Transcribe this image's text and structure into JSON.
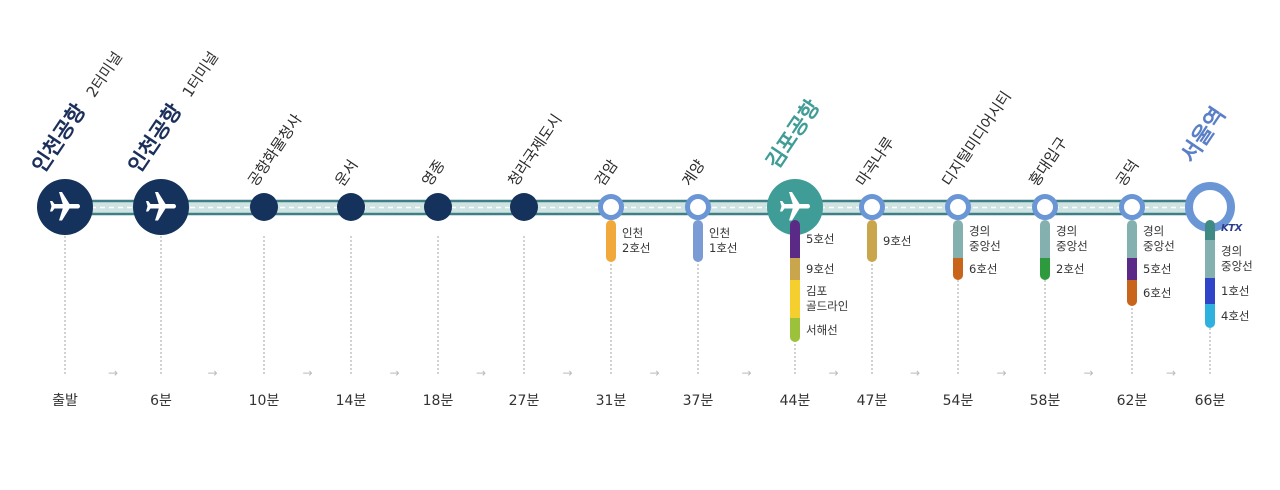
{
  "colors": {
    "navy": "#14325c",
    "teal": "#3f9c96",
    "blue": "#6a96d6",
    "track_edge": "#3f7f86",
    "track_fill": "#cfe3e3"
  },
  "stations": [
    {
      "name": "인천공항",
      "sub": "2터미널",
      "time": "출발",
      "type": "airport",
      "transfers": []
    },
    {
      "name": "인천공항",
      "sub": "1터미널",
      "time": "6분",
      "type": "airport",
      "transfers": []
    },
    {
      "name": "공항화물청사",
      "sub": "",
      "time": "10분",
      "type": "small",
      "transfers": []
    },
    {
      "name": "운서",
      "sub": "",
      "time": "14분",
      "type": "small",
      "transfers": []
    },
    {
      "name": "영종",
      "sub": "",
      "time": "18분",
      "type": "small",
      "transfers": []
    },
    {
      "name": "청라국제도시",
      "sub": "",
      "time": "27분",
      "type": "small",
      "transfers": []
    },
    {
      "name": "검암",
      "sub": "",
      "time": "31분",
      "type": "ring",
      "transfers": [
        {
          "label": "인천\n2호선",
          "color": "#f2a93b"
        }
      ]
    },
    {
      "name": "계양",
      "sub": "",
      "time": "37분",
      "type": "ring",
      "transfers": [
        {
          "label": "인천\n1호선",
          "color": "#7b9bd4"
        }
      ]
    },
    {
      "name": "김포공항",
      "sub": "",
      "time": "44분",
      "type": "gimpo",
      "transfers": [
        {
          "label": "5호선",
          "color": "#5b2a86"
        },
        {
          "label": "9호선",
          "color": "#c9a54b"
        },
        {
          "label": "김포\n골드라인",
          "color": "#f4cf2e"
        },
        {
          "label": "서해선",
          "color": "#9cc23b"
        }
      ]
    },
    {
      "name": "마곡나루",
      "sub": "",
      "time": "47분",
      "type": "ring",
      "transfers": [
        {
          "label": "9호선",
          "color": "#c9a54b"
        }
      ]
    },
    {
      "name": "디지털미디어시티",
      "sub": "",
      "time": "54분",
      "type": "ring",
      "transfers": [
        {
          "label": "경의\n중앙선",
          "color": "#85b0b0"
        },
        {
          "label": "6호선",
          "color": "#c8651b"
        }
      ]
    },
    {
      "name": "홍대입구",
      "sub": "",
      "time": "58분",
      "type": "ring",
      "transfers": [
        {
          "label": "경의\n중앙선",
          "color": "#85b0b0"
        },
        {
          "label": "2호선",
          "color": "#2e9a3e"
        }
      ]
    },
    {
      "name": "공덕",
      "sub": "",
      "time": "62분",
      "type": "ring",
      "transfers": [
        {
          "label": "경의\n중앙선",
          "color": "#85b0b0"
        },
        {
          "label": "5호선",
          "color": "#5b2a86"
        },
        {
          "label": "6호선",
          "color": "#c8651b"
        }
      ]
    },
    {
      "name": "서울역",
      "sub": "",
      "time": "66분",
      "type": "seoul",
      "transfers": [
        {
          "label": "KTX",
          "color": "#3f8a84",
          "ktx": true
        },
        {
          "label": "경의\n중앙선",
          "color": "#85b0b0"
        },
        {
          "label": "1호선",
          "color": "#2f44c8"
        },
        {
          "label": "4호선",
          "color": "#2fb1e0"
        }
      ]
    }
  ]
}
